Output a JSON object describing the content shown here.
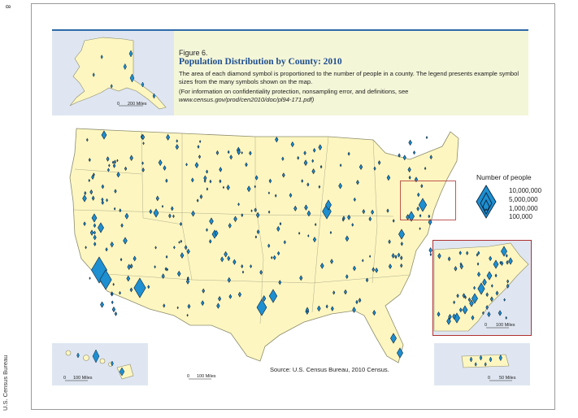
{
  "page": {
    "number": "8",
    "side_label": "U.S. Census Bureau"
  },
  "figure": {
    "label": "Figure 6.",
    "title": "Population Distribution by County: 2010",
    "description": "The area of each diamond symbol is proportioned to the number of people in a county. The legend presents example symbol sizes from the many symbols shown on the map.",
    "note_prefix": "(For information on confidentiality protection, nonsampling error, and definitions, see",
    "note_url": "www.census.gov/prod/cen2010/doc/pl94-171.pdf)"
  },
  "legend": {
    "title": "Number of people",
    "values": [
      "10,000,000",
      "5,000,000",
      "1,000,000",
      "100,000"
    ]
  },
  "scales": {
    "alaska": "200 Miles",
    "hawaii": "100 Miles",
    "conus": "100 Miles",
    "northeast": "100 Miles",
    "puerto_rico": "50 Miles",
    "zero": "0"
  },
  "source": "Source: U.S. Census Bureau, 2010 Census.",
  "colors": {
    "land": "#fdf6c0",
    "water_inset": "#dfe6f1",
    "symbol": "#1e8fd0",
    "symbol_stroke": "#0b2540",
    "boundary": "#8c8c6e",
    "callout": "#b03030"
  }
}
